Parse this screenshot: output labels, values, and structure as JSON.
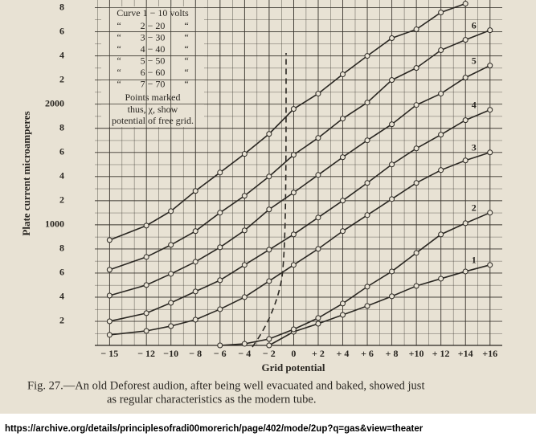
{
  "chart_data": {
    "type": "line",
    "ylabel": "Plate current   microamperes",
    "xlabel": "Grid potential",
    "caption": [
      "Fig. 27.—An old Deforest audion, after being well evacuated and baked, showed just",
      "as regular characteristics as the modern tube."
    ],
    "source": "https://archive.org/details/principlesofradi00morerich/page/402/mode/2up?q=gas&view=theater",
    "note": {
      "ditto": "“",
      "first": "Curve 1 − 10 volts",
      "rows": [
        "2 − 20",
        "3 − 30",
        "4 − 40",
        "5 − 50",
        "6 − 60",
        "7 − 70"
      ],
      "text": [
        "Points marked",
        "thus, χ, show",
        "potential of free grid."
      ]
    },
    "x": [
      -15,
      -12,
      -10,
      -8,
      -6,
      -4,
      -2,
      0,
      2,
      4,
      6,
      8,
      10,
      12,
      14,
      16
    ],
    "series": [
      {
        "name": "1",
        "color": "#2a2722",
        "values": [
          null,
          null,
          null,
          null,
          null,
          null,
          0,
          113,
          180,
          253,
          327,
          407,
          493,
          553,
          613,
          667
        ]
      },
      {
        "name": "2",
        "color": "#2a2722",
        "values": [
          null,
          null,
          null,
          null,
          0,
          13,
          53,
          133,
          227,
          347,
          487,
          613,
          767,
          920,
          1013,
          1100
        ]
      },
      {
        "name": "3",
        "color": "#2a2722",
        "values": [
          87,
          120,
          160,
          213,
          300,
          400,
          533,
          667,
          800,
          947,
          1080,
          1213,
          1347,
          1453,
          1533,
          1600
        ]
      },
      {
        "name": "4",
        "color": "#2a2722",
        "values": [
          200,
          267,
          353,
          447,
          540,
          667,
          793,
          920,
          1060,
          1200,
          1347,
          1500,
          1633,
          1747,
          1867,
          1953
        ]
      },
      {
        "name": "5",
        "color": "#2a2722",
        "values": [
          413,
          500,
          593,
          693,
          813,
          953,
          1127,
          1267,
          1413,
          1560,
          1700,
          1833,
          1993,
          2087,
          2220,
          2320
        ]
      },
      {
        "name": "6",
        "color": "#2a2722",
        "values": [
          627,
          733,
          833,
          947,
          1100,
          1240,
          1400,
          1580,
          1720,
          1880,
          2013,
          2200,
          2300,
          2447,
          2533,
          2613
        ]
      },
      {
        "color": "#2a2722",
        "values": [
          873,
          993,
          1113,
          1280,
          1433,
          1587,
          1753,
          1960,
          2087,
          2247,
          2400,
          2547,
          2620,
          2760,
          2833,
          null
        ]
      }
    ],
    "xlim": [
      -16.2,
      17
    ],
    "ylim": [
      0,
      2850
    ],
    "xticks": [
      {
        "value": -15,
        "label": "− 15"
      },
      {
        "value": -12,
        "label": "− 12"
      },
      {
        "value": -10,
        "label": "−10"
      },
      {
        "value": -8,
        "label": "− 8"
      },
      {
        "value": -6,
        "label": "− 6"
      },
      {
        "value": -4,
        "label": "− 4"
      },
      {
        "value": -2,
        "label": "− 2"
      },
      0,
      {
        "value": 2,
        "label": "+ 2"
      },
      {
        "value": 4,
        "label": "+ 4"
      },
      {
        "value": 6,
        "label": "+ 6"
      },
      {
        "value": 8,
        "label": "+ 8"
      },
      {
        "value": 10,
        "label": "+10"
      },
      {
        "value": 12,
        "label": "+ 12"
      },
      {
        "value": 14,
        "label": "+14"
      },
      {
        "value": 16,
        "label": "+16"
      }
    ],
    "yticks": [
      {
        "value": 200,
        "label": "2"
      },
      {
        "value": 400,
        "label": "4"
      },
      {
        "value": 600,
        "label": "6"
      },
      {
        "value": 800,
        "label": "8"
      },
      1000,
      {
        "value": 1200,
        "label": "2"
      },
      {
        "value": 1400,
        "label": "4"
      },
      {
        "value": 1600,
        "label": "6"
      },
      {
        "value": 1800,
        "label": "8"
      },
      2000,
      {
        "value": 2200,
        "label": "2"
      },
      {
        "value": 2400,
        "label": "4"
      },
      {
        "value": 2600,
        "label": "6"
      },
      {
        "value": 2800,
        "label": "8"
      }
    ],
    "grid": true
  }
}
